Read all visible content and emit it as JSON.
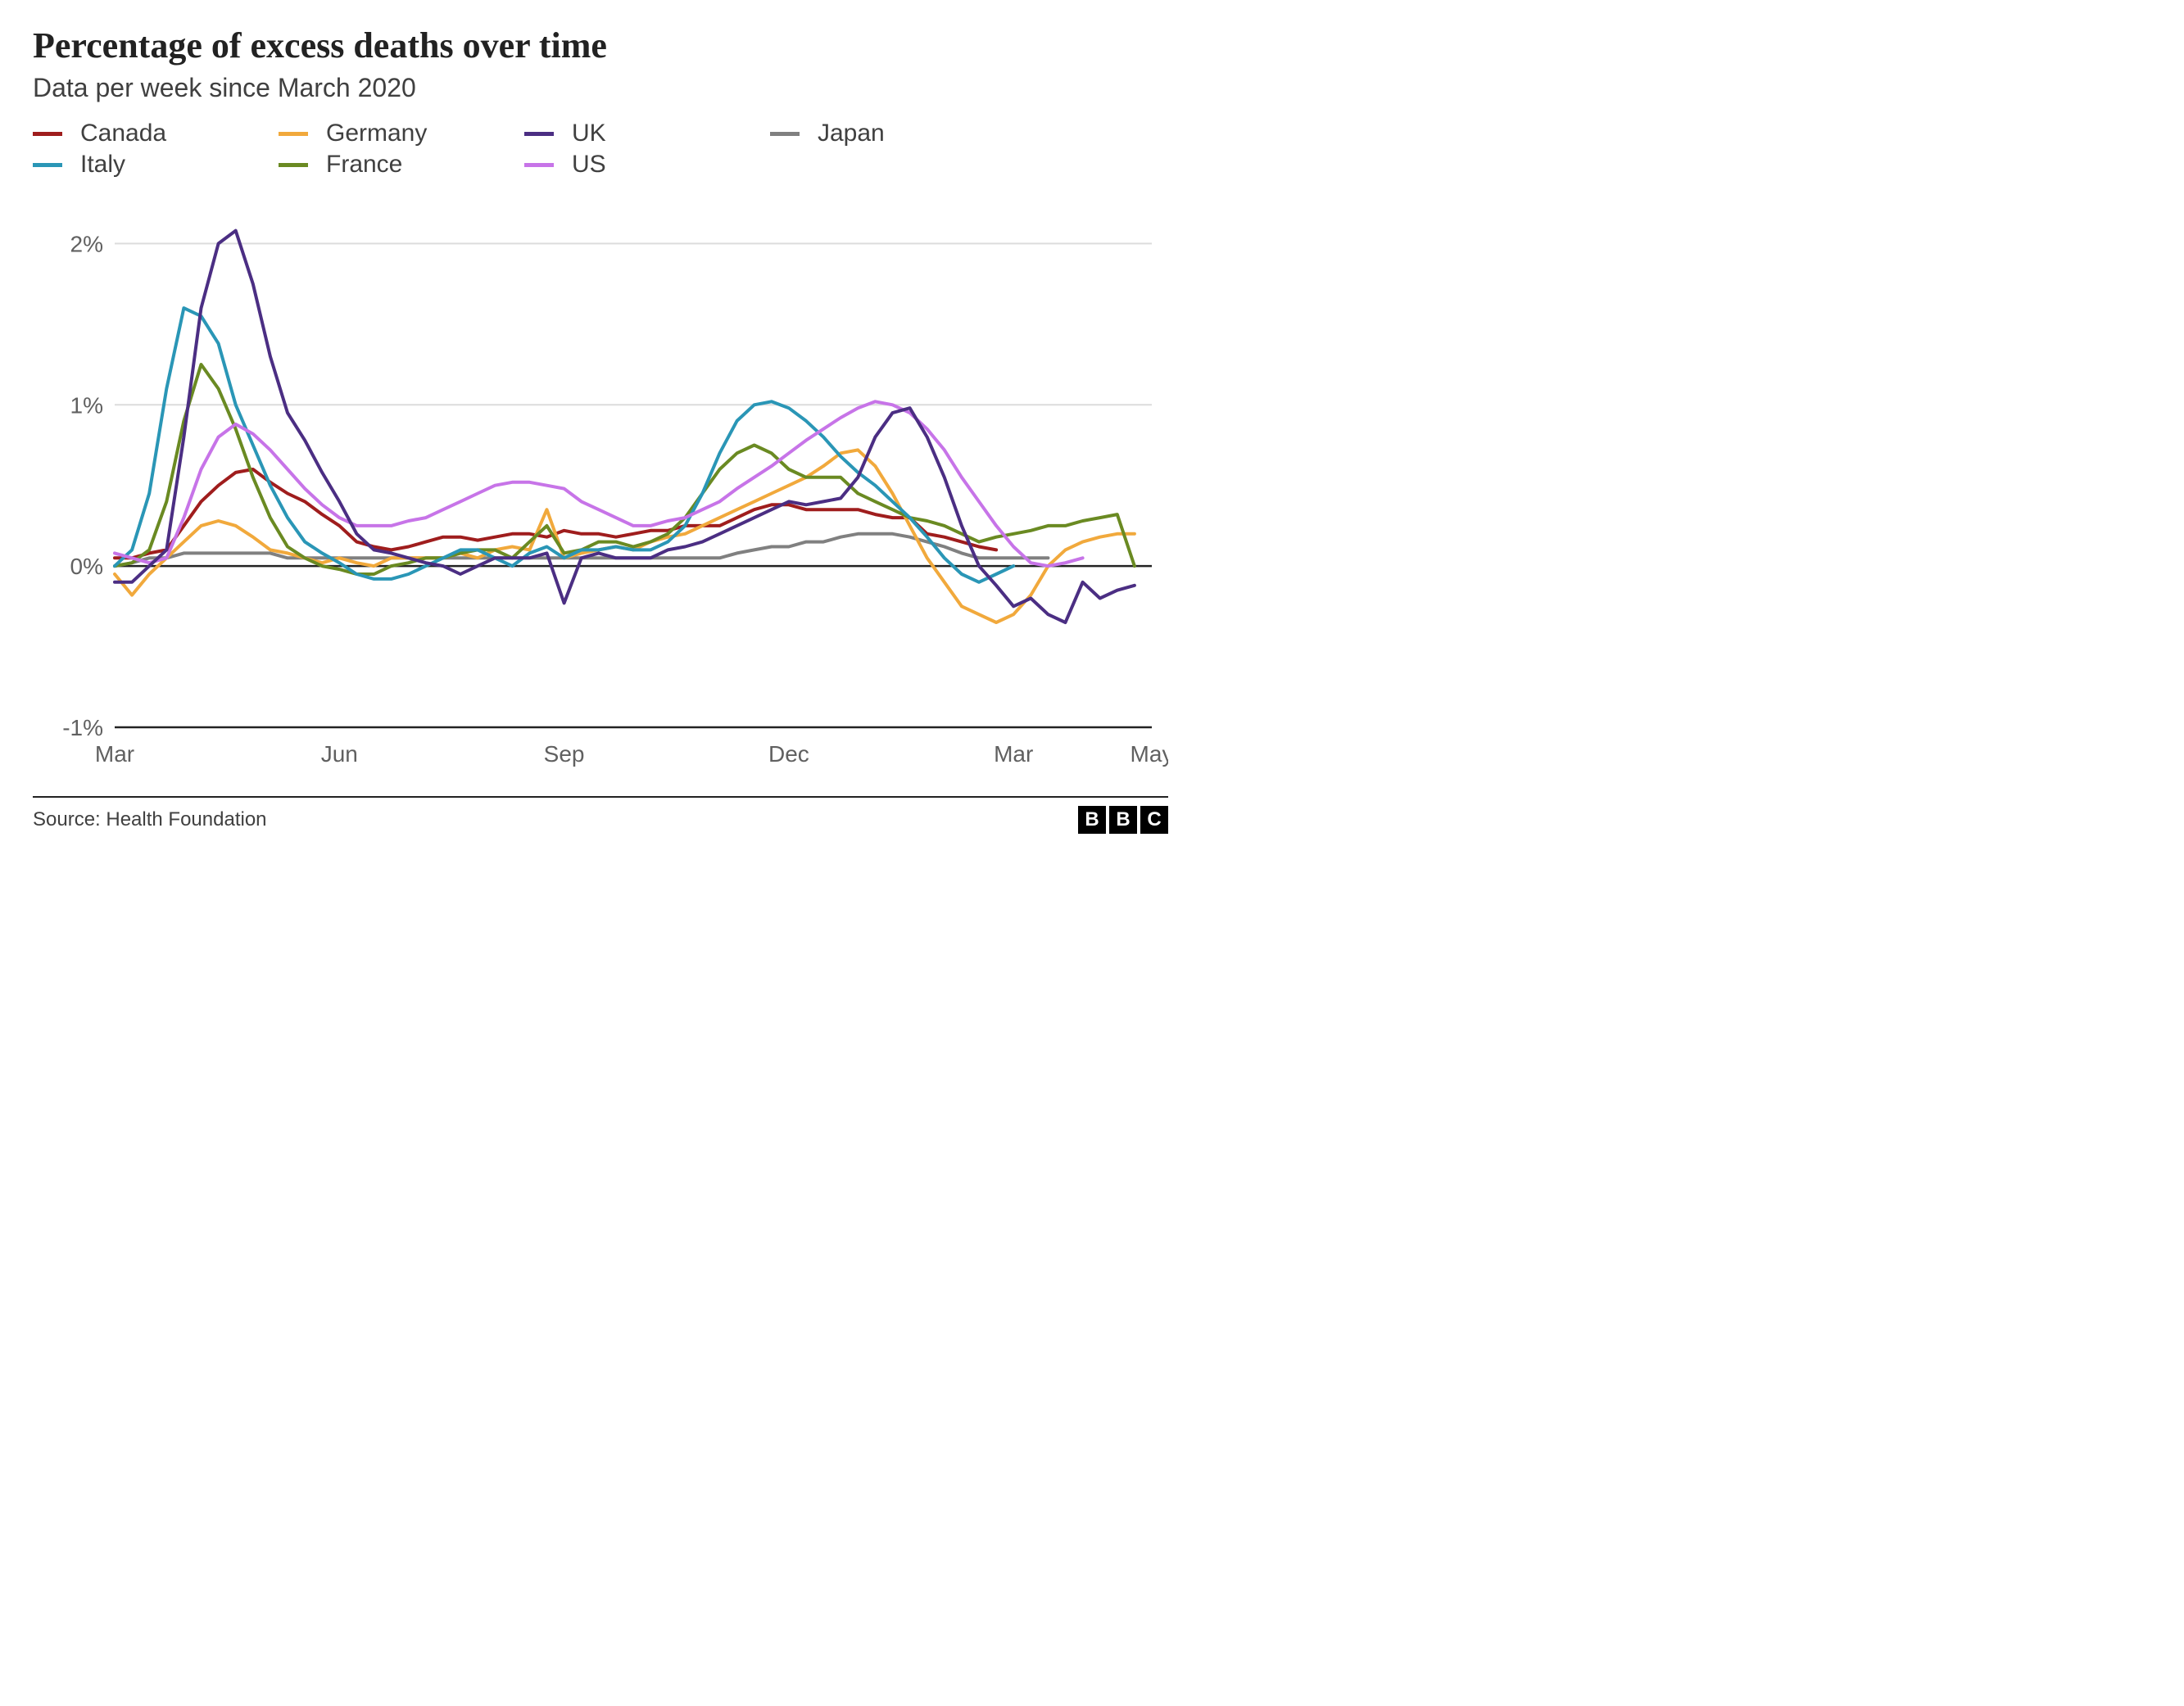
{
  "title": "Percentage of excess deaths over time",
  "subtitle": "Data per week since March 2020",
  "source": "Source: Health Foundation",
  "logo_letters": [
    "B",
    "B",
    "C"
  ],
  "chart": {
    "type": "line",
    "background_color": "#ffffff",
    "grid_color": "#dcdcdc",
    "zero_line_color": "#222222",
    "axis_text_color": "#606060",
    "axis_fontsize": 28,
    "line_width": 4,
    "ylim": [
      -1,
      2.2
    ],
    "yticks": [
      {
        "v": -1,
        "label": "-1%"
      },
      {
        "v": 0,
        "label": "0%"
      },
      {
        "v": 1,
        "label": "1%"
      },
      {
        "v": 2,
        "label": "2%"
      }
    ],
    "xlim": [
      0,
      60
    ],
    "xticks": [
      {
        "v": 0,
        "label": "Mar"
      },
      {
        "v": 13,
        "label": "Jun"
      },
      {
        "v": 26,
        "label": "Sep"
      },
      {
        "v": 39,
        "label": "Dec"
      },
      {
        "v": 52,
        "label": "Mar"
      },
      {
        "v": 60,
        "label": "May"
      }
    ],
    "series": [
      {
        "name": "Canada",
        "color": "#9f1d1d",
        "values": [
          0.05,
          0.05,
          0.08,
          0.1,
          0.25,
          0.4,
          0.5,
          0.58,
          0.6,
          0.52,
          0.45,
          0.4,
          0.32,
          0.25,
          0.15,
          0.12,
          0.1,
          0.12,
          0.15,
          0.18,
          0.18,
          0.16,
          0.18,
          0.2,
          0.2,
          0.18,
          0.22,
          0.2,
          0.2,
          0.18,
          0.2,
          0.22,
          0.22,
          0.25,
          0.25,
          0.25,
          0.3,
          0.35,
          0.38,
          0.38,
          0.35,
          0.35,
          0.35,
          0.35,
          0.32,
          0.3,
          0.3,
          0.2,
          0.18,
          0.15,
          0.12,
          0.1
        ]
      },
      {
        "name": "Germany",
        "color": "#f1a93c",
        "values": [
          -0.05,
          -0.18,
          -0.05,
          0.05,
          0.15,
          0.25,
          0.28,
          0.25,
          0.18,
          0.1,
          0.08,
          0.05,
          0.02,
          0.05,
          0.02,
          0.0,
          0.05,
          0.05,
          0.05,
          0.05,
          0.08,
          0.05,
          0.1,
          0.12,
          0.1,
          0.35,
          0.05,
          0.08,
          0.1,
          0.12,
          0.1,
          0.15,
          0.18,
          0.2,
          0.25,
          0.3,
          0.35,
          0.4,
          0.45,
          0.5,
          0.55,
          0.62,
          0.7,
          0.72,
          0.62,
          0.45,
          0.25,
          0.05,
          -0.1,
          -0.25,
          -0.3,
          -0.35,
          -0.3,
          -0.18,
          0.0,
          0.1,
          0.15,
          0.18,
          0.2,
          0.2
        ]
      },
      {
        "name": "UK",
        "color": "#4b2e83",
        "values": [
          -0.1,
          -0.1,
          0.0,
          0.1,
          0.8,
          1.6,
          2.0,
          2.08,
          1.75,
          1.3,
          0.95,
          0.78,
          0.58,
          0.4,
          0.2,
          0.1,
          0.08,
          0.05,
          0.02,
          0.0,
          -0.05,
          0.0,
          0.05,
          0.05,
          0.05,
          0.08,
          -0.23,
          0.05,
          0.08,
          0.05,
          0.05,
          0.05,
          0.1,
          0.12,
          0.15,
          0.2,
          0.25,
          0.3,
          0.35,
          0.4,
          0.38,
          0.4,
          0.42,
          0.55,
          0.8,
          0.95,
          0.98,
          0.8,
          0.55,
          0.25,
          0.0,
          -0.12,
          -0.25,
          -0.2,
          -0.3,
          -0.35,
          -0.1,
          -0.2,
          -0.15,
          -0.12
        ]
      },
      {
        "name": "Japan",
        "color": "#808080",
        "values": [
          0.0,
          0.02,
          0.05,
          0.05,
          0.08,
          0.08,
          0.08,
          0.08,
          0.08,
          0.08,
          0.05,
          0.05,
          0.05,
          0.05,
          0.05,
          0.05,
          0.05,
          0.05,
          0.05,
          0.05,
          0.05,
          0.05,
          0.05,
          0.05,
          0.05,
          0.05,
          0.05,
          0.05,
          0.05,
          0.05,
          0.05,
          0.05,
          0.05,
          0.05,
          0.05,
          0.05,
          0.08,
          0.1,
          0.12,
          0.12,
          0.15,
          0.15,
          0.18,
          0.2,
          0.2,
          0.2,
          0.18,
          0.15,
          0.12,
          0.08,
          0.05,
          0.05,
          0.05,
          0.05,
          0.05
        ]
      },
      {
        "name": "Italy",
        "color": "#2a96b6",
        "values": [
          0.0,
          0.1,
          0.45,
          1.1,
          1.6,
          1.55,
          1.38,
          1.0,
          0.75,
          0.5,
          0.3,
          0.15,
          0.08,
          0.02,
          -0.05,
          -0.08,
          -0.08,
          -0.05,
          0.0,
          0.05,
          0.1,
          0.1,
          0.05,
          0.0,
          0.08,
          0.12,
          0.05,
          0.1,
          0.1,
          0.12,
          0.1,
          0.1,
          0.15,
          0.25,
          0.45,
          0.7,
          0.9,
          1.0,
          1.02,
          0.98,
          0.9,
          0.8,
          0.68,
          0.58,
          0.5,
          0.4,
          0.3,
          0.18,
          0.05,
          -0.05,
          -0.1,
          -0.05,
          0.0
        ]
      },
      {
        "name": "France",
        "color": "#6a8a22",
        "values": [
          0.0,
          0.02,
          0.1,
          0.4,
          0.9,
          1.25,
          1.1,
          0.85,
          0.55,
          0.3,
          0.12,
          0.05,
          0.0,
          -0.02,
          -0.05,
          -0.05,
          0.0,
          0.02,
          0.05,
          0.05,
          0.08,
          0.1,
          0.1,
          0.05,
          0.15,
          0.25,
          0.08,
          0.1,
          0.15,
          0.15,
          0.12,
          0.15,
          0.2,
          0.3,
          0.45,
          0.6,
          0.7,
          0.75,
          0.7,
          0.6,
          0.55,
          0.55,
          0.55,
          0.45,
          0.4,
          0.35,
          0.3,
          0.28,
          0.25,
          0.2,
          0.15,
          0.18,
          0.2,
          0.22,
          0.25,
          0.25,
          0.28,
          0.3,
          0.32,
          0.0
        ]
      },
      {
        "name": "US",
        "color": "#c774e8",
        "values": [
          0.08,
          0.05,
          0.02,
          0.05,
          0.3,
          0.6,
          0.8,
          0.88,
          0.82,
          0.72,
          0.6,
          0.48,
          0.38,
          0.3,
          0.25,
          0.25,
          0.25,
          0.28,
          0.3,
          0.35,
          0.4,
          0.45,
          0.5,
          0.52,
          0.52,
          0.5,
          0.48,
          0.4,
          0.35,
          0.3,
          0.25,
          0.25,
          0.28,
          0.3,
          0.35,
          0.4,
          0.48,
          0.55,
          0.62,
          0.7,
          0.78,
          0.85,
          0.92,
          0.98,
          1.02,
          1.0,
          0.95,
          0.85,
          0.72,
          0.55,
          0.4,
          0.25,
          0.12,
          0.02,
          0.0,
          0.02,
          0.05
        ]
      }
    ]
  }
}
